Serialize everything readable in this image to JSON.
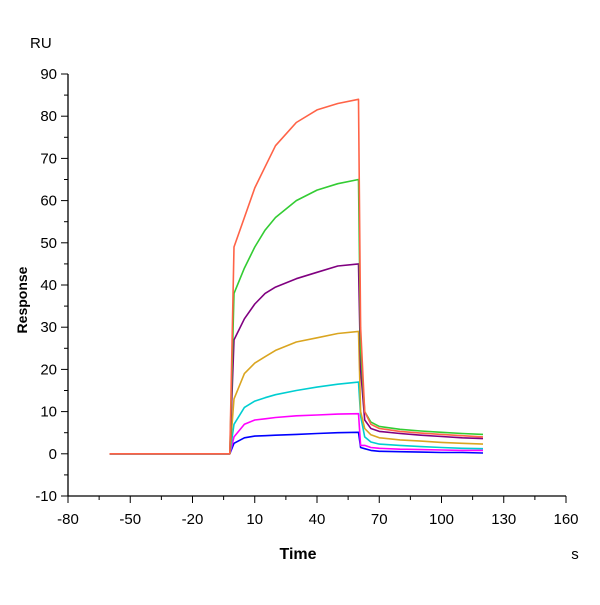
{
  "chart_data": {
    "type": "line",
    "title": "",
    "xlabel": "Time",
    "xunit": "s",
    "ylabel": "Response",
    "yunit": "RU",
    "xlim": [
      -80,
      160
    ],
    "ylim": [
      -10,
      90
    ],
    "xticks": [
      -80,
      -50,
      -20,
      10,
      40,
      70,
      100,
      130,
      160
    ],
    "yticks": [
      -10,
      0,
      10,
      20,
      30,
      40,
      50,
      60,
      70,
      80,
      90
    ],
    "grid": false,
    "x": [
      -60,
      -2,
      0,
      5,
      10,
      15,
      20,
      30,
      40,
      50,
      60,
      61,
      63,
      66,
      70,
      80,
      90,
      100,
      110,
      120
    ],
    "series": [
      {
        "color": "#ff6347",
        "values": [
          0,
          0,
          49,
          56,
          63,
          68,
          73,
          78.5,
          81.5,
          83,
          84,
          30,
          10,
          7,
          6,
          5.3,
          4.9,
          4.6,
          4.3,
          4.0
        ]
      },
      {
        "color": "#33cc33",
        "values": [
          0,
          0,
          38,
          44,
          49,
          53,
          56,
          60,
          62.5,
          64,
          65,
          25,
          10,
          7.5,
          6.5,
          5.8,
          5.4,
          5.1,
          4.8,
          4.6
        ]
      },
      {
        "color": "#800080",
        "values": [
          0,
          0,
          27,
          32,
          35.5,
          38,
          39.5,
          41.5,
          43,
          44.5,
          45,
          20,
          8,
          6,
          5.3,
          4.8,
          4.4,
          4.1,
          3.8,
          3.6
        ]
      },
      {
        "color": "#daa520",
        "values": [
          0,
          0,
          13,
          19,
          21.5,
          23,
          24.5,
          26.5,
          27.5,
          28.5,
          29,
          10,
          6,
          4.5,
          3.8,
          3.3,
          3,
          2.7,
          2.5,
          2.3
        ]
      },
      {
        "color": "#00ced1",
        "values": [
          0,
          0,
          7,
          11,
          12.5,
          13.3,
          14,
          15,
          15.8,
          16.5,
          17,
          9,
          4,
          2.8,
          2.3,
          2,
          1.7,
          1.5,
          1.3,
          1.2
        ]
      },
      {
        "color": "#ff00ff",
        "values": [
          0,
          0,
          4,
          7,
          8,
          8.3,
          8.6,
          9,
          9.2,
          9.4,
          9.5,
          2,
          2,
          1.5,
          1.3,
          1.1,
          1,
          0.9,
          0.8,
          0.8
        ]
      },
      {
        "color": "#0000ff",
        "values": [
          0,
          0,
          2.5,
          3.8,
          4.2,
          4.3,
          4.4,
          4.6,
          4.8,
          5,
          5.1,
          1.5,
          1.2,
          0.8,
          0.6,
          0.5,
          0.4,
          0.3,
          0.3,
          0.2
        ]
      }
    ]
  }
}
